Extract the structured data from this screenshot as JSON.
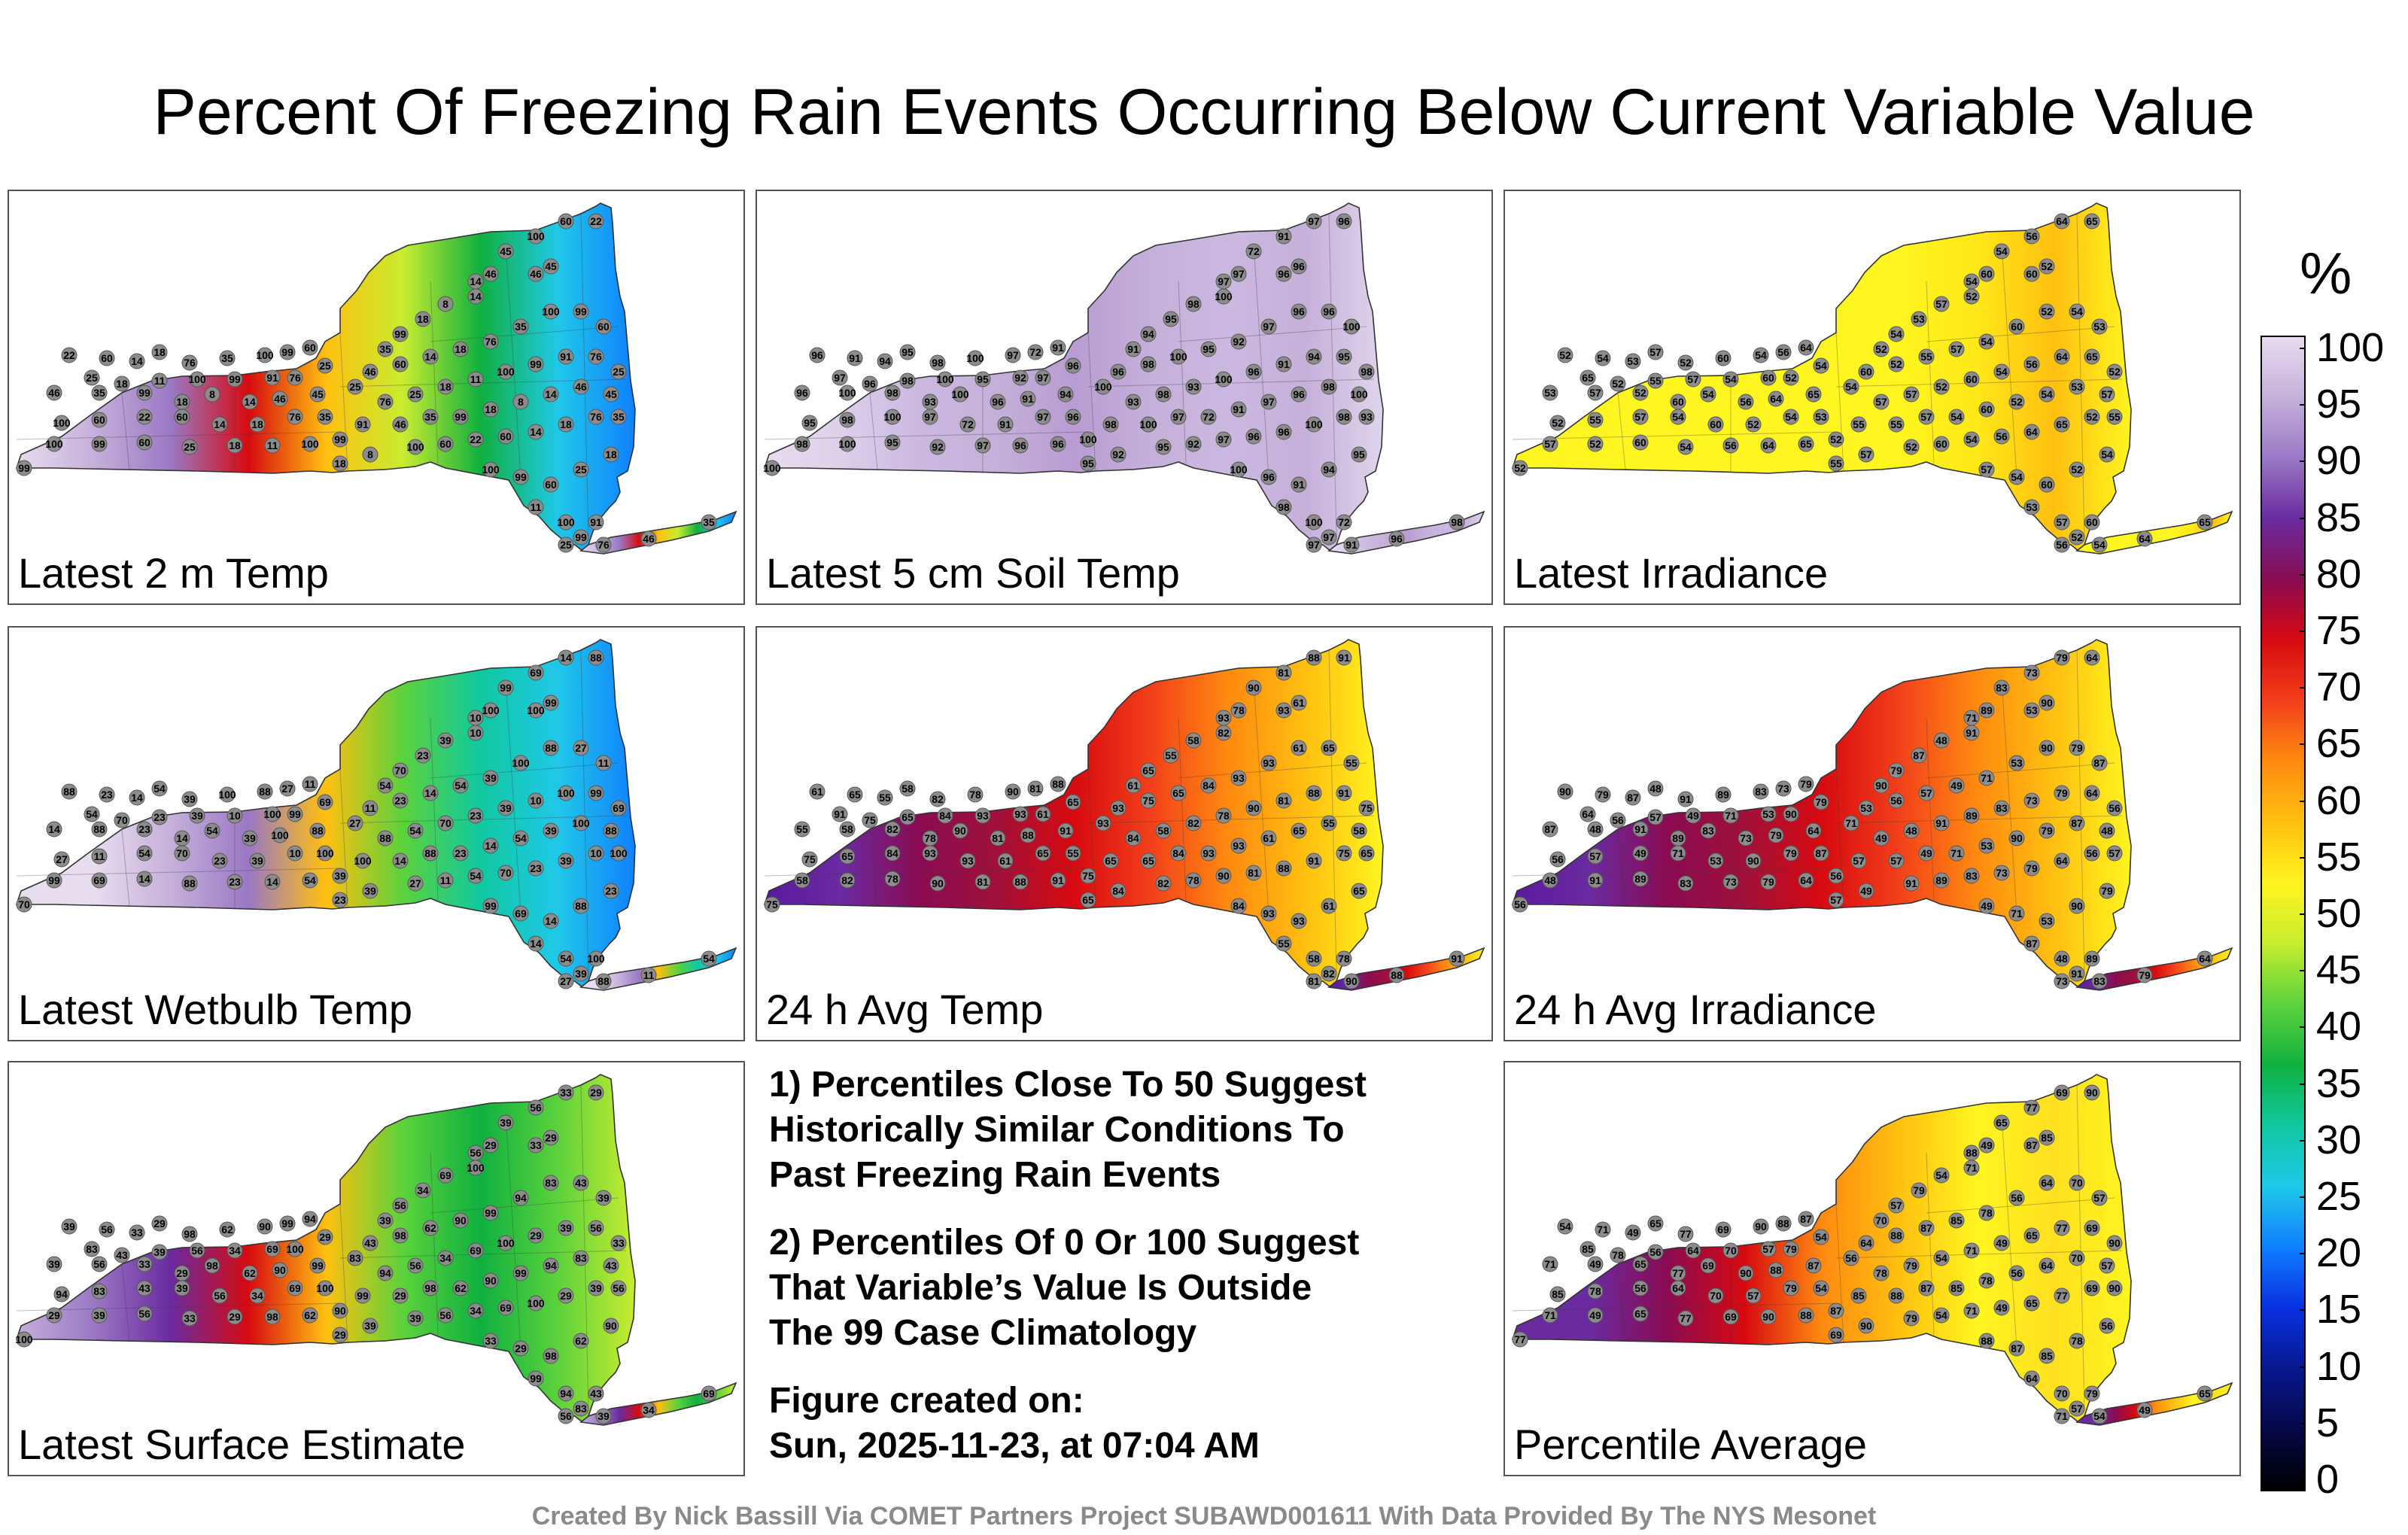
{
  "title": "Percent Of Freezing Rain Events Occurring Below Current Variable Value",
  "panels": [
    {
      "label": "Latest 2 m Temp",
      "theme": "mixed-a"
    },
    {
      "label": "Latest 5 cm Soil Temp",
      "theme": "purple"
    },
    {
      "label": "Latest Irradiance",
      "theme": "yellow"
    },
    {
      "label": "Latest Wetbulb Temp",
      "theme": "mixed-b"
    },
    {
      "label": "24 h Avg Temp",
      "theme": "red-purple"
    },
    {
      "label": "24 h Avg Irradiance",
      "theme": "red-purple"
    },
    {
      "label": "Latest Surface Estimate",
      "theme": "green"
    },
    {
      "label": "Percentile Average",
      "theme": "orange"
    }
  ],
  "notes": {
    "note1": [
      "1) Percentiles Close To 50 Suggest",
      "Historically Similar Conditions To",
      "Past Freezing Rain Events"
    ],
    "note2": [
      "2) Percentiles Of 0 Or 100 Suggest",
      "That Variable’s Value Is Outside",
      "The 99 Case Climatology"
    ],
    "created_label": "Figure created on:",
    "created_value": "Sun, 2025-11-23, at 07:04 AM"
  },
  "footer": "Created By Nick Bassill Via COMET Partners Project SUBAWD001611 With Data Provided By The NYS Mesonet",
  "colorbar": {
    "unit": "%",
    "ticks": [
      "100",
      "95",
      "90",
      "85",
      "80",
      "75",
      "70",
      "65",
      "60",
      "55",
      "50",
      "45",
      "40",
      "35",
      "30",
      "25",
      "20",
      "15",
      "10",
      "5",
      "0"
    ],
    "colors": [
      "#e8dcef",
      "#c5b0da",
      "#9a78c4",
      "#6a2aa0",
      "#8a0b52",
      "#d70a10",
      "#f2401a",
      "#ff8a10",
      "#ffc010",
      "#fff520",
      "#c8ec30",
      "#5bd23c",
      "#10b040",
      "#10c8a0",
      "#20c8e8",
      "#1080ff",
      "#0830e0",
      "#081890",
      "#050848",
      "#000000"
    ]
  },
  "station_values": {
    "latest_2m_temp": [
      "22",
      "60",
      "14",
      "18",
      "76",
      "35",
      "100",
      "99",
      "60",
      "25",
      "18",
      "11",
      "100",
      "99",
      "91",
      "76",
      "25",
      "46",
      "35",
      "99",
      "18",
      "8",
      "14",
      "46",
      "45",
      "100",
      "60"
    ],
    "latest_5cm_soil_temp": [
      "96",
      "91",
      "94",
      "95",
      "98",
      "100",
      "97",
      "72",
      "91",
      "97",
      "96",
      "98",
      "100",
      "95",
      "92",
      "97",
      "96",
      "96",
      "100",
      "98",
      "93",
      "100"
    ],
    "latest_irradiance": [
      "52",
      "54",
      "53",
      "57",
      "52",
      "60",
      "54",
      "56",
      "64",
      "65",
      "52",
      "55",
      "57",
      "54",
      "60"
    ],
    "latest_wetbulb_temp": [
      "88",
      "23",
      "14",
      "54",
      "39",
      "100",
      "88",
      "27",
      "11",
      "54",
      "70",
      "23",
      "39",
      "10",
      "100",
      "99",
      "69",
      "14"
    ],
    "avg_temp_24h": [
      "61",
      "65",
      "55",
      "58",
      "82",
      "78",
      "90",
      "81",
      "88",
      "91",
      "75",
      "65",
      "84",
      "93",
      "93"
    ],
    "avg_irradiance_24h": [
      "90",
      "79",
      "87",
      "48",
      "91",
      "89",
      "83",
      "73",
      "79",
      "64",
      "56",
      "57",
      "49",
      "71",
      "53"
    ],
    "latest_surface_estimate": [
      "39",
      "56",
      "33",
      "29",
      "98",
      "62",
      "90",
      "99",
      "94",
      "83",
      "43",
      "39",
      "56",
      "34",
      "69",
      "100",
      "29"
    ],
    "percentile_average": [
      "54",
      "71",
      "49",
      "65",
      "77",
      "69",
      "90",
      "88",
      "87",
      "85",
      "78",
      "56",
      "64",
      "70",
      "57",
      "79"
    ]
  }
}
